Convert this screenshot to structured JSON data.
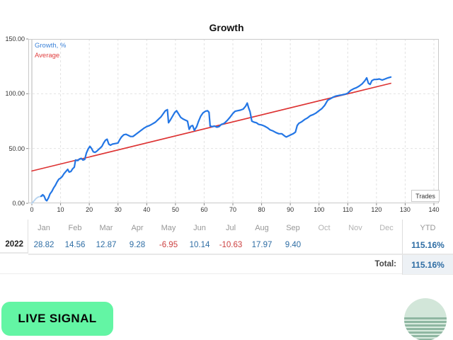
{
  "chart": {
    "title": "Growth",
    "trades_label": "Trades"
  },
  "chart_data": {
    "type": "line",
    "title": "Growth",
    "xlabel": "Trades",
    "ylabel": "Growth, %",
    "xlim": [
      0,
      140
    ],
    "ylim": [
      0,
      150
    ],
    "xticks": [
      0,
      10,
      20,
      30,
      40,
      50,
      60,
      70,
      80,
      90,
      100,
      110,
      120,
      130,
      140
    ],
    "yticks": [
      0,
      50,
      100,
      150
    ],
    "ytick_labels": [
      "0.00",
      "50.00",
      "100.00",
      "150.00"
    ],
    "grid": "dashed",
    "legend_position": "top-left",
    "legend": [
      {
        "label": "Growth, %",
        "color": "#3b82d8"
      },
      {
        "label": "Average",
        "color": "#e04040"
      }
    ],
    "series": [
      {
        "name": "growth-start",
        "color": "#b8d4f0",
        "width": 2,
        "points": [
          [
            0,
            0
          ],
          [
            0.7,
            2
          ],
          [
            1.4,
            4.2
          ],
          [
            2,
            5.4
          ],
          [
            2.6,
            6
          ],
          [
            3.4,
            6.4
          ],
          [
            4,
            6.5
          ]
        ]
      },
      {
        "name": "Average",
        "color": "#dd3333",
        "width": 1.6,
        "points": [
          [
            0,
            29.5
          ],
          [
            125,
            109.5
          ]
        ]
      },
      {
        "name": "Growth, %",
        "color": "#2376e5",
        "width": 2.2,
        "points": [
          [
            3.2,
            6.4
          ],
          [
            3.8,
            7.8
          ],
          [
            4.3,
            6.5
          ],
          [
            4.8,
            3.2
          ],
          [
            5.2,
            2.3
          ],
          [
            5.8,
            5
          ],
          [
            6.3,
            8.5
          ],
          [
            7,
            11
          ],
          [
            7.6,
            14
          ],
          [
            8.2,
            16.5
          ],
          [
            8.8,
            19.5
          ],
          [
            9.4,
            22
          ],
          [
            10,
            23
          ],
          [
            10.6,
            24.5
          ],
          [
            11.2,
            27
          ],
          [
            12,
            29.5
          ],
          [
            12.5,
            31
          ],
          [
            13,
            28.5
          ],
          [
            13.6,
            29
          ],
          [
            14.2,
            31.5
          ],
          [
            14.8,
            33
          ],
          [
            15.2,
            39.5
          ],
          [
            16,
            39
          ],
          [
            16.6,
            40.5
          ],
          [
            17.2,
            41
          ],
          [
            17.8,
            39.5
          ],
          [
            18.4,
            40
          ],
          [
            19,
            46
          ],
          [
            19.6,
            49.5
          ],
          [
            20.2,
            52
          ],
          [
            20.8,
            50
          ],
          [
            21.4,
            47
          ],
          [
            22,
            46.5
          ],
          [
            22.6,
            47.5
          ],
          [
            23.2,
            49
          ],
          [
            23.8,
            50.5
          ],
          [
            24.4,
            52
          ],
          [
            25,
            55
          ],
          [
            25.6,
            57.5
          ],
          [
            26.2,
            58.5
          ],
          [
            26.8,
            54
          ],
          [
            27.4,
            53
          ],
          [
            28,
            54
          ],
          [
            29,
            54.5
          ],
          [
            30,
            55
          ],
          [
            30.6,
            58
          ],
          [
            31.2,
            60.5
          ],
          [
            32,
            62.5
          ],
          [
            32.8,
            63
          ],
          [
            33.6,
            62
          ],
          [
            34.4,
            61
          ],
          [
            35.2,
            61
          ],
          [
            36,
            62.5
          ],
          [
            37,
            64.5
          ],
          [
            38,
            66.5
          ],
          [
            39,
            68.5
          ],
          [
            40,
            70
          ],
          [
            41,
            71
          ],
          [
            42,
            72.5
          ],
          [
            43,
            74
          ],
          [
            44,
            76.5
          ],
          [
            45,
            79
          ],
          [
            45.8,
            82
          ],
          [
            46.5,
            84.5
          ],
          [
            47.2,
            85.5
          ],
          [
            47.6,
            73.5
          ],
          [
            48.2,
            76
          ],
          [
            49,
            79.5
          ],
          [
            49.8,
            83
          ],
          [
            50.4,
            84.5
          ],
          [
            51,
            82
          ],
          [
            51.8,
            78.5
          ],
          [
            52.6,
            77
          ],
          [
            53.4,
            76
          ],
          [
            54.2,
            75
          ],
          [
            54.8,
            67.5
          ],
          [
            55.4,
            70.5
          ],
          [
            56,
            71
          ],
          [
            56.6,
            66.5
          ],
          [
            57.4,
            70
          ],
          [
            58,
            74.5
          ],
          [
            58.8,
            79.5
          ],
          [
            59.6,
            82.5
          ],
          [
            60.4,
            84
          ],
          [
            61.2,
            84.5
          ],
          [
            61.7,
            83
          ],
          [
            62.1,
            70.5
          ],
          [
            62.8,
            70
          ],
          [
            63.6,
            70.5
          ],
          [
            64.4,
            69.5
          ],
          [
            65.2,
            70
          ],
          [
            66,
            72
          ],
          [
            67,
            73
          ],
          [
            68,
            75.5
          ],
          [
            69,
            78.5
          ],
          [
            70,
            82
          ],
          [
            70.8,
            84
          ],
          [
            71.6,
            84.5
          ],
          [
            72.6,
            85
          ],
          [
            73.6,
            86
          ],
          [
            74.4,
            88.5
          ],
          [
            75,
            91.5
          ],
          [
            75.5,
            87
          ],
          [
            76,
            83.5
          ],
          [
            76.6,
            75
          ],
          [
            77.4,
            74
          ],
          [
            78.2,
            73.5
          ],
          [
            79,
            72
          ],
          [
            80,
            71.5
          ],
          [
            81,
            70.5
          ],
          [
            82,
            69
          ],
          [
            83,
            67
          ],
          [
            84,
            66
          ],
          [
            85,
            64.5
          ],
          [
            86,
            63.5
          ],
          [
            87,
            63.5
          ],
          [
            88,
            61.5
          ],
          [
            88.6,
            60.5
          ],
          [
            89.4,
            61.5
          ],
          [
            90.2,
            62.5
          ],
          [
            91,
            63.5
          ],
          [
            91.8,
            65
          ],
          [
            92.4,
            71
          ],
          [
            93,
            73
          ],
          [
            94,
            74.5
          ],
          [
            95,
            76.5
          ],
          [
            96,
            78
          ],
          [
            97,
            80
          ],
          [
            98,
            81
          ],
          [
            99,
            82.5
          ],
          [
            100,
            84.5
          ],
          [
            101,
            86.5
          ],
          [
            102,
            89.5
          ],
          [
            103,
            94
          ],
          [
            104,
            95.5
          ],
          [
            105,
            97
          ],
          [
            106,
            98
          ],
          [
            107,
            98.5
          ],
          [
            108,
            99
          ],
          [
            109,
            99.5
          ],
          [
            110,
            100.5
          ],
          [
            111,
            103
          ],
          [
            112,
            104.5
          ],
          [
            113,
            105.5
          ],
          [
            114,
            107
          ],
          [
            115,
            109
          ],
          [
            116,
            112
          ],
          [
            116.6,
            114.5
          ],
          [
            117.2,
            109.5
          ],
          [
            117.8,
            108.5
          ],
          [
            118.4,
            112
          ],
          [
            119.2,
            113
          ],
          [
            120,
            113
          ],
          [
            121,
            113.5
          ],
          [
            122,
            112.5
          ],
          [
            123,
            113.5
          ],
          [
            124,
            114.5
          ],
          [
            125,
            115.2
          ]
        ]
      }
    ]
  },
  "table": {
    "months": [
      "Jan",
      "Feb",
      "Mar",
      "Apr",
      "May",
      "Jun",
      "Jul",
      "Aug",
      "Sep",
      "Oct",
      "Nov",
      "Dec"
    ],
    "ytd_label": "YTD",
    "rows": [
      {
        "year": "2022",
        "values": [
          "28.82",
          "14.56",
          "12.87",
          "9.28",
          "-6.95",
          "10.14",
          "-10.63",
          "17.97",
          "9.40",
          "",
          "",
          ""
        ],
        "ytd": "115.16%"
      }
    ],
    "total_label": "Total:",
    "total_value": "115.16%"
  },
  "footer": {
    "live_signal_label": "LIVE SIGNAL"
  },
  "colors": {
    "growth_line": "#2376e5",
    "growth_start_line": "#b8d4f0",
    "average_line": "#dd3333",
    "positive_value": "#2e6da4",
    "negative_value": "#cc4040",
    "live_button_bg": "#63f5a4",
    "logo_light_green": "#d2e6d9",
    "logo_dark_green": "#8fb7a2"
  }
}
